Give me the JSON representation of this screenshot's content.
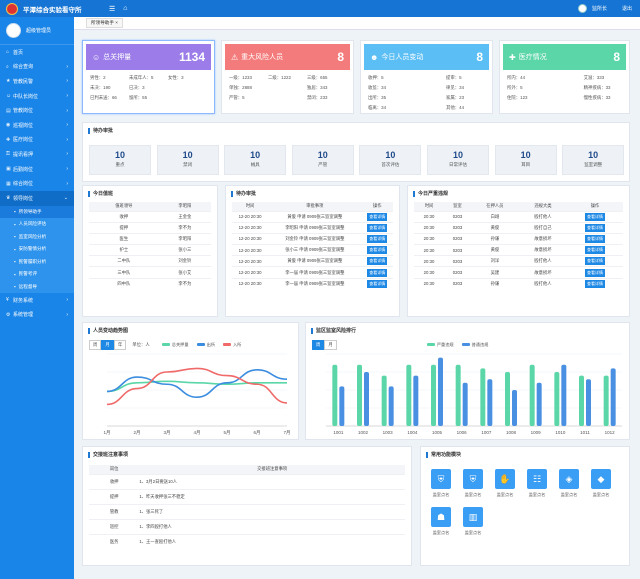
{
  "header": {
    "title": "平潭综合实验看守所",
    "user": "监所长",
    "logout": "退出"
  },
  "sidebar": {
    "user": "超级管理员",
    "items": [
      {
        "label": "首页",
        "icon": "home-icon",
        "arrow": ""
      },
      {
        "label": "综合查询",
        "icon": "search-icon",
        "arrow": "›"
      },
      {
        "label": "管教民警",
        "icon": "police-icon",
        "arrow": "›"
      },
      {
        "label": "中队长岗位",
        "icon": "user-icon",
        "arrow": "›"
      },
      {
        "label": "管教岗位",
        "icon": "book-icon",
        "arrow": "›"
      },
      {
        "label": "巡视岗位",
        "icon": "eye-icon",
        "arrow": "›"
      },
      {
        "label": "医疗岗位",
        "icon": "medical-icon",
        "arrow": "›"
      },
      {
        "label": "提讯看押",
        "icon": "lock-icon",
        "arrow": "›"
      },
      {
        "label": "后勤岗位",
        "icon": "truck-icon",
        "arrow": "›"
      },
      {
        "label": "综合岗位",
        "icon": "grid-icon",
        "arrow": "›"
      },
      {
        "label": "领导岗位",
        "icon": "leader-icon",
        "arrow": "⌄"
      }
    ],
    "sub_items": [
      "所领导助手",
      "人员风险评估",
      "监室风险分析",
      "安防警情分析",
      "民警履职分析",
      "民警考评",
      "远程督导"
    ],
    "bottom_items": [
      {
        "label": "财务系统",
        "icon": "finance-icon",
        "arrow": "›"
      },
      {
        "label": "系统管理",
        "icon": "settings-icon",
        "arrow": "›"
      }
    ]
  },
  "tab": {
    "label": "所领导助手 ×"
  },
  "stats": [
    {
      "title": "总关押量",
      "value": "1134",
      "color": "#9b7ce8",
      "icon": "person-icon",
      "fields": [
        "男性：2",
        "未成年人：5",
        "女性：3",
        "未决：190",
        "已决：3",
        "",
        "已判未送：66",
        "留所：55",
        ""
      ]
    },
    {
      "title": "重大风险人员",
      "value": "8",
      "color": "#f47b7b",
      "icon": "warning-icon",
      "fields": [
        "一级：1233",
        "二级：1222",
        "三级：655",
        "单独：2888",
        "",
        "独居：343",
        "严管：5",
        "",
        "禁闭：233"
      ]
    },
    {
      "title": "今日人员变动",
      "value": "8",
      "color": "#5bbef4",
      "icon": "people-icon",
      "fields": [
        "收押：5",
        "",
        "提审：5",
        "收监：34",
        "",
        "律见：34",
        "出所：35",
        "",
        "家属：23",
        "临离：34",
        "",
        "其他：44"
      ]
    },
    {
      "title": "医疗情况",
      "value": "8",
      "color": "#5ad6a8",
      "icon": "medkit-icon",
      "fields": [
        "所内：44",
        "",
        "艾滋：333",
        "所外：5",
        "",
        "精神疾病：33",
        "住院：123",
        "",
        "慢性疾病：33"
      ]
    }
  ],
  "pending": {
    "title": "待办审批",
    "items": [
      {
        "value": "10",
        "label": "重点"
      },
      {
        "value": "10",
        "label": "禁闭"
      },
      {
        "value": "10",
        "label": "械具"
      },
      {
        "value": "10",
        "label": "严管"
      },
      {
        "value": "10",
        "label": "首次评估"
      },
      {
        "value": "10",
        "label": "日常评估"
      },
      {
        "value": "10",
        "label": "耳目"
      },
      {
        "value": "10",
        "label": "监室调整"
      }
    ]
  },
  "duty": {
    "title": "今日值班",
    "headers": [
      "值班领导",
      "李昭阳"
    ],
    "rows": [
      [
        "收押",
        "王金金"
      ],
      [
        "提押",
        "李不为"
      ],
      [
        "医生",
        "李昭阳"
      ],
      [
        "护士",
        "张小三"
      ],
      [
        "二中队",
        "刘金铃"
      ],
      [
        "三中队",
        "张小艾"
      ],
      [
        "四中队",
        "李不为"
      ]
    ]
  },
  "approval": {
    "title": "待办审批",
    "headers": [
      "时间",
      "审批事项",
      "操作"
    ],
    "rows": [
      [
        "12-20 20:30",
        "黄俊 申请 0909张三监室调整"
      ],
      [
        "12-20 20:30",
        "李昭阳 申请 0909张三监室调整"
      ],
      [
        "12-20 20:30",
        "刘金铃 申请 0909张三监室调整"
      ],
      [
        "12-20 20:30",
        "张小三 申请 0909张三监室调整"
      ],
      [
        "12-20 20:30",
        "黄俊 申请 0909张三监室调整"
      ],
      [
        "12-20 20:30",
        "李一届 申请 0909张三监室调整"
      ],
      [
        "12-20 20:30",
        "李一届 申请 0909张三监室调整"
      ]
    ],
    "action": "查看详情"
  },
  "violations": {
    "title": "今日严重违规",
    "headers": [
      "时间",
      "监室",
      "在押人员",
      "违规大类",
      "操作"
    ],
    "rows": [
      [
        "20:30",
        "0203",
        "白翊",
        "殴打他人"
      ],
      [
        "20:30",
        "0203",
        "黄俊",
        "殴打自己"
      ],
      [
        "20:30",
        "0203",
        "孙谦",
        "故意损坏"
      ],
      [
        "20:30",
        "0203",
        "黄俊",
        "故意损坏"
      ],
      [
        "20:30",
        "0203",
        "刘洋",
        "殴打他人"
      ],
      [
        "20:30",
        "0203",
        "吴建",
        "故意损坏"
      ],
      [
        "20:30",
        "0203",
        "孙谦",
        "殴打他人"
      ]
    ],
    "action": "查看详情"
  },
  "trend": {
    "title": "人员变动趋势图",
    "tabs": [
      "周",
      "月",
      "年"
    ],
    "unit": "单位：人"
  },
  "ranking": {
    "title": "监区监室风险排行",
    "tabs": [
      "周",
      "月"
    ]
  },
  "chart_data": [
    {
      "type": "line",
      "x": [
        "1月",
        "2月",
        "3月",
        "4月",
        "5月",
        "6月",
        "7月"
      ],
      "series": [
        {
          "name": "总关押量",
          "color": "#5ad6a8",
          "values": [
            48,
            60,
            62,
            60,
            58,
            60,
            60
          ]
        },
        {
          "name": "出所",
          "color": "#3b8de0",
          "values": [
            48,
            68,
            58,
            40,
            60,
            78,
            65
          ]
        },
        {
          "name": "入所",
          "color": "#f06a6a",
          "values": [
            30,
            52,
            75,
            80,
            70,
            58,
            32
          ]
        }
      ],
      "ylim": [
        0,
        100
      ],
      "grid": true
    },
    {
      "type": "bar",
      "categories": [
        "1001",
        "1002",
        "1003",
        "1004",
        "1005",
        "1006",
        "1007",
        "1008",
        "1009",
        "1010",
        "1011",
        "1012"
      ],
      "series": [
        {
          "name": "严重违规",
          "color": "#5ad6a8",
          "values": [
            85,
            85,
            70,
            85,
            85,
            85,
            80,
            75,
            85,
            75,
            70,
            70
          ]
        },
        {
          "name": "普通违规",
          "color": "#4a90e2",
          "values": [
            55,
            75,
            55,
            70,
            95,
            60,
            65,
            50,
            60,
            85,
            65,
            80
          ]
        }
      ],
      "ylim": [
        0,
        100
      ],
      "grid": true
    }
  ],
  "shift": {
    "title": "交接班注意事项",
    "headers": [
      "岗位",
      "交接班注意事项"
    ],
    "rows": [
      [
        "收押",
        "1、3月2日要送10人"
      ],
      [
        "提押",
        "1、昨天收押张三不稳定"
      ],
      [
        "管教",
        "1、张三死了"
      ],
      [
        "巡控",
        "1、李四殴打他人"
      ],
      [
        "医务",
        "1、王一查殴打他人"
      ]
    ]
  },
  "modules": {
    "title": "常用功能模块",
    "items": [
      "监室点名",
      "监室点名",
      "监室点名",
      "监室点名",
      "监室点名",
      "监室点名",
      "监室点名",
      "监室点名"
    ],
    "icons": [
      "shield-icon",
      "shield-icon",
      "hand-icon",
      "team-icon",
      "seal-icon",
      "badge-icon",
      "officer-icon",
      "board-icon"
    ]
  }
}
